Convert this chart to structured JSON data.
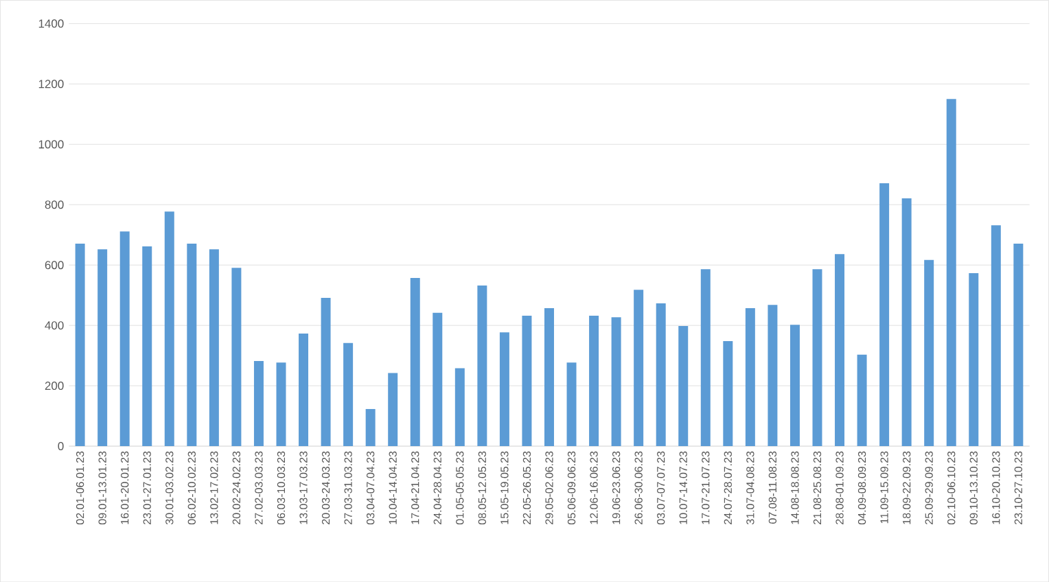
{
  "chart_data": {
    "type": "bar",
    "categories": [
      "02.01-06.01.23",
      "09.01-13.01.23",
      "16.01-20.01.23",
      "23.01-27.01.23",
      "30.01-03.02.23",
      "06.02-10.02.23",
      "13.02-17.02.23",
      "20.02-24.02.23",
      "27.02-03.03.23",
      "06.03-10.03.23",
      "13.03-17.03.23",
      "20.03-24.03.23",
      "27.03-31.03.23",
      "03.04-07.04.23",
      "10.04-14.04.23",
      "17.04-21.04.23",
      "24.04-28.04.23",
      "01.05-05.05.23",
      "08.05-12.05.23",
      "15.05-19.05.23",
      "22.05-26.05.23",
      "29.05-02.06.23",
      "05.06-09.06.23",
      "12.06-16.06.23",
      "19.06-23.06.23",
      "26.06-30.06.23",
      "03.07-07.07.23",
      "10.07-14.07.23",
      "17.07-21.07.23",
      "24.07-28.07.23",
      "31.07-04.08.23",
      "07.08-11.08.23",
      "14.08-18.08.23",
      "21.08-25.08.23",
      "28.08-01.09.23",
      "04.09-08.09.23",
      "11.09-15.09.23",
      "18.09-22.09.23",
      "25.09-29.09.23",
      "02.10-06.10.23",
      "09.10-13.10.23",
      "16.10-20.10.23",
      "23.10-27.10.23"
    ],
    "values": [
      671,
      652,
      711,
      662,
      777,
      671,
      652,
      591,
      282,
      277,
      373,
      491,
      342,
      123,
      242,
      557,
      442,
      258,
      532,
      377,
      432,
      457,
      277,
      432,
      427,
      518,
      473,
      398,
      586,
      348,
      457,
      468,
      402,
      586,
      636,
      303,
      871,
      821,
      617,
      1150,
      573,
      732,
      671
    ],
    "color": "#5b9bd5",
    "ylim": [
      0,
      1400
    ],
    "yticks": [
      0,
      200,
      400,
      600,
      800,
      1000,
      1200,
      1400
    ],
    "grid": "y"
  }
}
